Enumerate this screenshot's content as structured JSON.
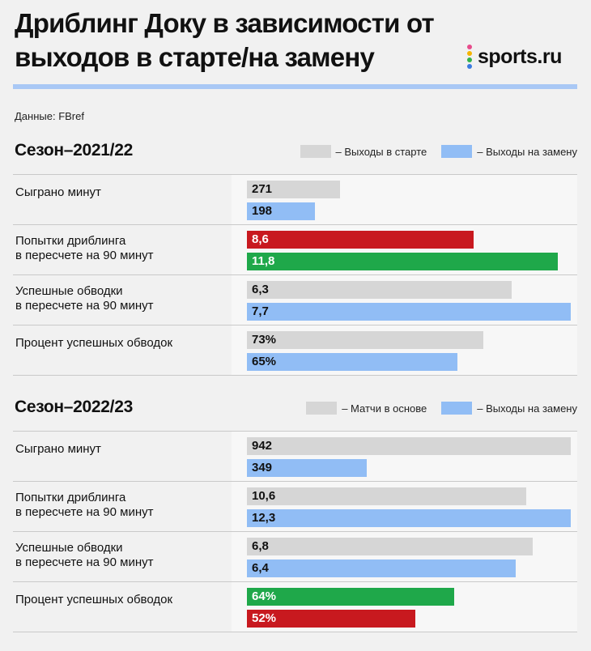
{
  "header": {
    "title": "Дриблинг Доку в зависимости от выходов в старте/на замену",
    "source": "Данные: FBref",
    "logo_text": "sports.ru",
    "logo_dot_colors": [
      "#e74c8b",
      "#f6b400",
      "#33b24a",
      "#3a7be0"
    ],
    "rule_color": "#a9c8f5"
  },
  "colors": {
    "start": "#d6d6d6",
    "sub": "#91bdf5",
    "red": "#c8191f",
    "green": "#1fa84a"
  },
  "chart_data": [
    {
      "type": "bar",
      "title": "Сезон–2021/22",
      "legend": [
        "– Выходы в старте",
        "– Выходы на замену"
      ],
      "categories": [
        "Сыграно минут",
        "Попытки дриблинга в пересчете на 90 минут",
        "Успешные обводки в пересчете на 90 минут",
        "Процент успешных обводок"
      ],
      "rows": [
        {
          "label": "Сыграно минут",
          "values": [
            271,
            198
          ],
          "display": [
            "271",
            "198"
          ],
          "max": 942,
          "colors": [
            "start",
            "sub"
          ]
        },
        {
          "label": "Попытки дриблинга\nв пересчете на 90 минут",
          "values": [
            8.6,
            11.8
          ],
          "display": [
            "8,6",
            "11,8"
          ],
          "max": 12.3,
          "colors": [
            "red",
            "green"
          ]
        },
        {
          "label": "Успешные обводки\nв пересчете на 90 минут",
          "values": [
            6.3,
            7.7
          ],
          "display": [
            "6,3",
            "7,7"
          ],
          "max": 7.7,
          "colors": [
            "start",
            "sub"
          ]
        },
        {
          "label": "Процент успешных обводок",
          "values": [
            73,
            65
          ],
          "display": [
            "73%",
            "65%"
          ],
          "max": 100,
          "colors": [
            "start",
            "sub"
          ]
        }
      ]
    },
    {
      "type": "bar",
      "title": "Сезон–2022/23",
      "legend": [
        "– Матчи в основе",
        "– Выходы на замену"
      ],
      "categories": [
        "Сыграно минут",
        "Попытки дриблинга в пересчете на 90 минут",
        "Успешные обводки в пересчете на 90 минут",
        "Процент успешных обводок"
      ],
      "rows": [
        {
          "label": "Сыграно минут",
          "values": [
            942,
            349
          ],
          "display": [
            "942",
            "349"
          ],
          "max": 942,
          "colors": [
            "start",
            "sub"
          ]
        },
        {
          "label": "Попытки дриблинга\nв пересчете на 90 минут",
          "values": [
            10.6,
            12.3
          ],
          "display": [
            "10,6",
            "12,3"
          ],
          "max": 12.3,
          "colors": [
            "start",
            "sub"
          ]
        },
        {
          "label": "Успешные обводки\nв пересчете на 90 минут",
          "values": [
            6.8,
            6.4
          ],
          "display": [
            "6,8",
            "6,4"
          ],
          "max": 7.7,
          "colors": [
            "start",
            "sub"
          ]
        },
        {
          "label": "Процент успешных обводок",
          "values": [
            64,
            52
          ],
          "display": [
            "64%",
            "52%"
          ],
          "max": 100,
          "colors": [
            "green",
            "red"
          ]
        }
      ]
    }
  ]
}
